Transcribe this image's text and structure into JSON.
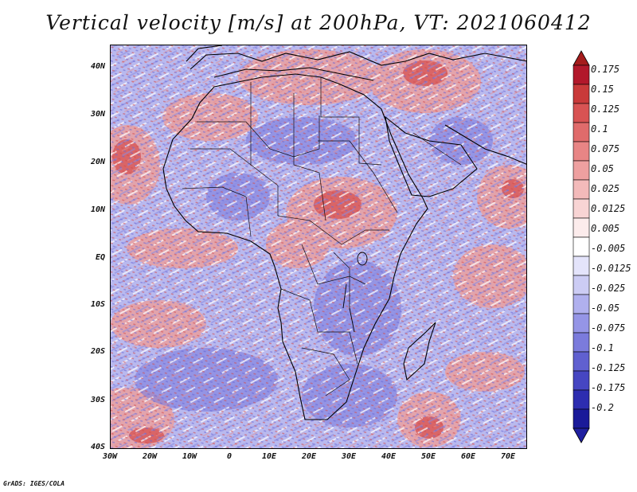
{
  "title": "Vertical velocity [m/s] at 200hPa, VT: 2021060412",
  "credit": "GrADS: IGES/COLA",
  "map": {
    "region": "Africa",
    "lat_labels": [
      "40N",
      "30N",
      "20N",
      "10N",
      "EQ",
      "10S",
      "20S",
      "30S",
      "40S"
    ],
    "lon_labels": [
      "30W",
      "20W",
      "10W",
      "0",
      "10E",
      "20E",
      "30E",
      "40E",
      "50E",
      "60E",
      "70E"
    ],
    "lon_range": [
      -30,
      75
    ],
    "lat_range": [
      -40,
      45
    ]
  },
  "colorbar": {
    "labels": [
      "0.175",
      "0.15",
      "0.125",
      "0.1",
      "0.075",
      "0.05",
      "0.025",
      "0.0125",
      "0.005",
      "-0.005",
      "-0.0125",
      "-0.025",
      "-0.05",
      "-0.075",
      "-0.1",
      "-0.125",
      "-0.175",
      "-0.2"
    ],
    "colors": [
      "#b2182b",
      "#c93a3a",
      "#d85353",
      "#e06b6b",
      "#e88585",
      "#eea0a0",
      "#f3baba",
      "#f8d4d4",
      "#fcecec",
      "#ffffff",
      "#e4e4fb",
      "#ccccf4",
      "#b0b0ee",
      "#9595e6",
      "#7b7bdc",
      "#6060d0",
      "#4646c2",
      "#2d2db0",
      "#1a1a99"
    ],
    "tip_top_color": "#a51c1c",
    "tip_bottom_color": "#2020a0"
  }
}
